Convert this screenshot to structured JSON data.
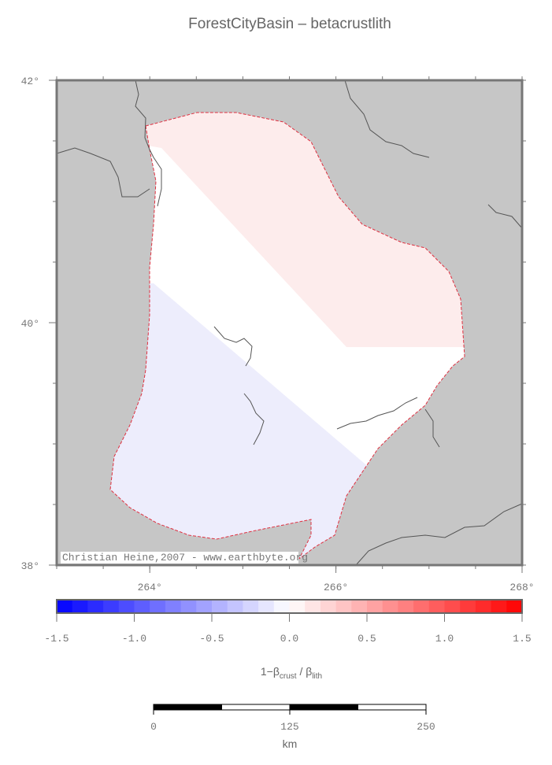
{
  "map": {
    "title": "ForestCityBasin – betacrustlith",
    "lon_range": [
      263,
      268
    ],
    "lat_range": [
      38,
      42
    ],
    "lat_ticks": [
      {
        "value": 42,
        "label": "42°"
      },
      {
        "value": 40,
        "label": "40°"
      },
      {
        "value": 38,
        "label": "38°"
      }
    ],
    "lon_ticks": [
      {
        "value": 264,
        "label": "264°"
      },
      {
        "value": 266,
        "label": "266°"
      },
      {
        "value": 268,
        "label": "268°"
      }
    ],
    "credit": "Christian Heine,2007 - www.earthbyte.org",
    "colorbar": {
      "range": [
        -1.5,
        1.5
      ],
      "step": 0.1,
      "colormap": [
        "#0000ff",
        "#ffffff",
        "#ff0000"
      ],
      "ticks": [
        {
          "value": -1.5,
          "label": "-1.5"
        },
        {
          "value": -1.0,
          "label": "-1.0"
        },
        {
          "value": -0.5,
          "label": "-0.5"
        },
        {
          "value": 0,
          "label": "0.0"
        },
        {
          "value": 0.5,
          "label": "0.5"
        },
        {
          "value": 1.0,
          "label": "1.0"
        },
        {
          "value": 1.5,
          "label": "1.5"
        }
      ],
      "label_parts": [
        "1−β",
        "crust",
        " / β",
        "lith"
      ]
    },
    "scalebar": {
      "range": [
        0,
        250
      ],
      "ticks": [
        0,
        125,
        250
      ],
      "unit": "km"
    }
  }
}
